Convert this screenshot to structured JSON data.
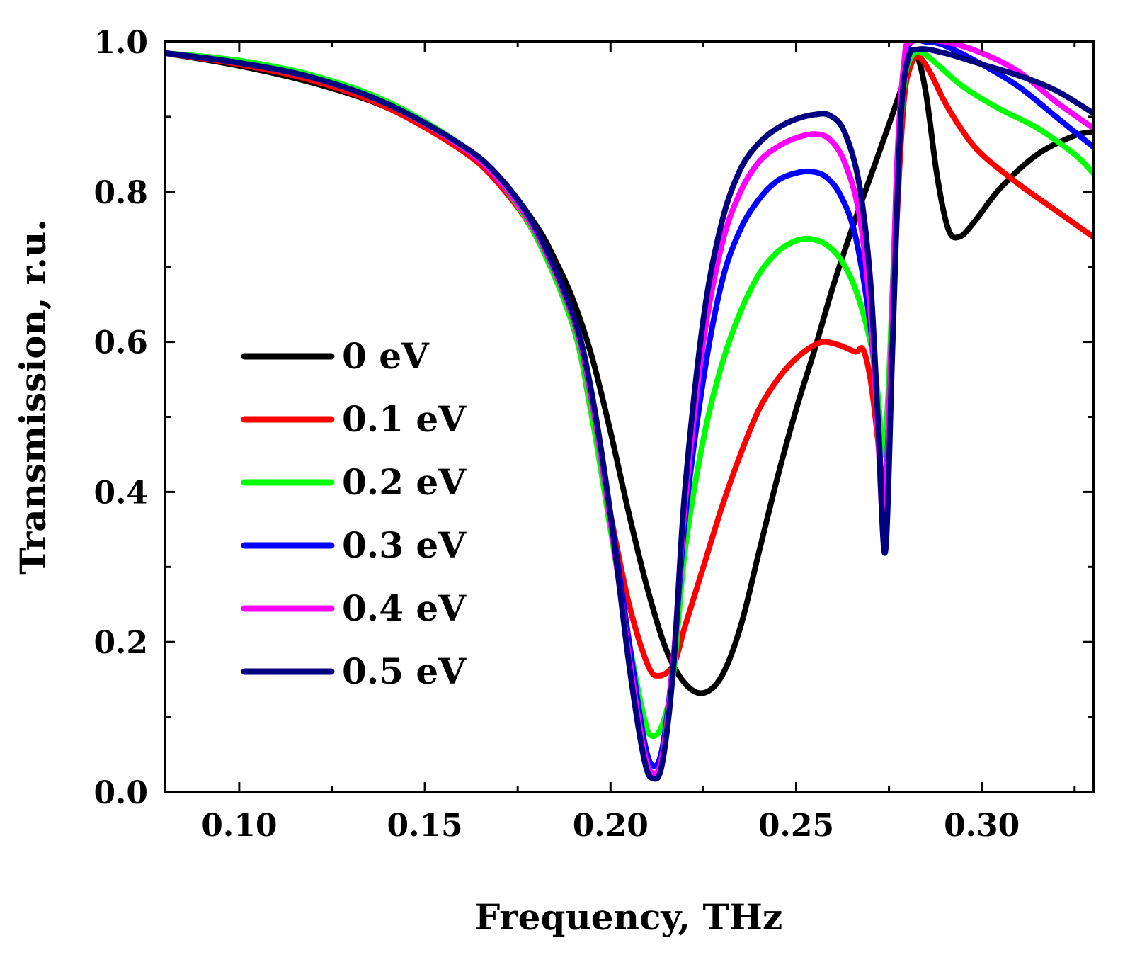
{
  "chart_data": {
    "type": "line",
    "title": "",
    "xlabel": "Frequency, THz",
    "ylabel": "Transmission, r.u.",
    "xlim": [
      0.08,
      0.33
    ],
    "ylim": [
      0.0,
      1.0
    ],
    "x_major_ticks": [
      0.1,
      0.15,
      0.2,
      0.25,
      0.3
    ],
    "x_tick_labels": [
      "0.10",
      "0.15",
      "0.20",
      "0.25",
      "0.30"
    ],
    "x_minor_ticks": [
      0.125,
      0.175,
      0.225,
      0.275,
      0.325
    ],
    "y_major_ticks": [
      0.0,
      0.2,
      0.4,
      0.6,
      0.8,
      1.0
    ],
    "y_tick_labels": [
      "0.0",
      "0.2",
      "0.4",
      "0.6",
      "0.8",
      "1.0"
    ],
    "y_minor_ticks": [
      0.1,
      0.3,
      0.5,
      0.7,
      0.9
    ],
    "grid": false,
    "legend_position": "center-left",
    "series": [
      {
        "name": "0 eV",
        "color": "#000000",
        "points": [
          [
            0.08,
            0.985
          ],
          [
            0.1,
            0.968
          ],
          [
            0.12,
            0.945
          ],
          [
            0.14,
            0.912
          ],
          [
            0.16,
            0.86
          ],
          [
            0.17,
            0.82
          ],
          [
            0.18,
            0.755
          ],
          [
            0.185,
            0.71
          ],
          [
            0.19,
            0.655
          ],
          [
            0.195,
            0.58
          ],
          [
            0.2,
            0.48
          ],
          [
            0.205,
            0.37
          ],
          [
            0.21,
            0.27
          ],
          [
            0.215,
            0.19
          ],
          [
            0.22,
            0.145
          ],
          [
            0.225,
            0.132
          ],
          [
            0.23,
            0.155
          ],
          [
            0.235,
            0.22
          ],
          [
            0.24,
            0.32
          ],
          [
            0.245,
            0.42
          ],
          [
            0.25,
            0.51
          ],
          [
            0.255,
            0.59
          ],
          [
            0.26,
            0.675
          ],
          [
            0.265,
            0.75
          ],
          [
            0.27,
            0.82
          ],
          [
            0.275,
            0.89
          ],
          [
            0.28,
            0.96
          ],
          [
            0.2825,
            0.98
          ],
          [
            0.285,
            0.93
          ],
          [
            0.288,
            0.82
          ],
          [
            0.291,
            0.75
          ],
          [
            0.294,
            0.74
          ],
          [
            0.298,
            0.76
          ],
          [
            0.305,
            0.805
          ],
          [
            0.315,
            0.85
          ],
          [
            0.325,
            0.875
          ],
          [
            0.33,
            0.88
          ]
        ]
      },
      {
        "name": "0.1 eV",
        "color": "#ff0000",
        "points": [
          [
            0.08,
            0.985
          ],
          [
            0.1,
            0.97
          ],
          [
            0.12,
            0.948
          ],
          [
            0.14,
            0.912
          ],
          [
            0.16,
            0.855
          ],
          [
            0.17,
            0.81
          ],
          [
            0.18,
            0.74
          ],
          [
            0.19,
            0.62
          ],
          [
            0.195,
            0.5
          ],
          [
            0.2,
            0.37
          ],
          [
            0.205,
            0.25
          ],
          [
            0.21,
            0.17
          ],
          [
            0.213,
            0.155
          ],
          [
            0.217,
            0.17
          ],
          [
            0.22,
            0.22
          ],
          [
            0.225,
            0.3
          ],
          [
            0.23,
            0.38
          ],
          [
            0.235,
            0.45
          ],
          [
            0.24,
            0.51
          ],
          [
            0.245,
            0.55
          ],
          [
            0.25,
            0.578
          ],
          [
            0.255,
            0.596
          ],
          [
            0.258,
            0.6
          ],
          [
            0.262,
            0.595
          ],
          [
            0.266,
            0.587
          ],
          [
            0.268,
            0.59
          ],
          [
            0.27,
            0.55
          ],
          [
            0.272,
            0.47
          ],
          [
            0.2735,
            0.4
          ],
          [
            0.275,
            0.5
          ],
          [
            0.277,
            0.75
          ],
          [
            0.279,
            0.92
          ],
          [
            0.281,
            0.97
          ],
          [
            0.283,
            0.98
          ],
          [
            0.286,
            0.96
          ],
          [
            0.29,
            0.92
          ],
          [
            0.295,
            0.88
          ],
          [
            0.3,
            0.85
          ],
          [
            0.31,
            0.81
          ],
          [
            0.32,
            0.775
          ],
          [
            0.33,
            0.74
          ]
        ]
      },
      {
        "name": "0.2 eV",
        "color": "#00ff00",
        "points": [
          [
            0.08,
            0.985
          ],
          [
            0.1,
            0.975
          ],
          [
            0.12,
            0.955
          ],
          [
            0.14,
            0.92
          ],
          [
            0.16,
            0.862
          ],
          [
            0.17,
            0.815
          ],
          [
            0.18,
            0.74
          ],
          [
            0.19,
            0.62
          ],
          [
            0.195,
            0.5
          ],
          [
            0.2,
            0.35
          ],
          [
            0.205,
            0.2
          ],
          [
            0.209,
            0.1
          ],
          [
            0.211,
            0.075
          ],
          [
            0.214,
            0.09
          ],
          [
            0.217,
            0.16
          ],
          [
            0.22,
            0.32
          ],
          [
            0.225,
            0.47
          ],
          [
            0.23,
            0.57
          ],
          [
            0.235,
            0.64
          ],
          [
            0.24,
            0.69
          ],
          [
            0.245,
            0.72
          ],
          [
            0.25,
            0.735
          ],
          [
            0.254,
            0.737
          ],
          [
            0.258,
            0.73
          ],
          [
            0.262,
            0.71
          ],
          [
            0.266,
            0.67
          ],
          [
            0.27,
            0.6
          ],
          [
            0.272,
            0.53
          ],
          [
            0.2735,
            0.45
          ],
          [
            0.275,
            0.55
          ],
          [
            0.277,
            0.8
          ],
          [
            0.279,
            0.94
          ],
          [
            0.281,
            0.98
          ],
          [
            0.284,
            0.985
          ],
          [
            0.288,
            0.97
          ],
          [
            0.295,
            0.94
          ],
          [
            0.305,
            0.91
          ],
          [
            0.315,
            0.885
          ],
          [
            0.325,
            0.85
          ],
          [
            0.33,
            0.825
          ]
        ]
      },
      {
        "name": "0.3 eV",
        "color": "#0000ff",
        "points": [
          [
            0.08,
            0.985
          ],
          [
            0.1,
            0.972
          ],
          [
            0.12,
            0.952
          ],
          [
            0.14,
            0.917
          ],
          [
            0.16,
            0.86
          ],
          [
            0.17,
            0.815
          ],
          [
            0.18,
            0.745
          ],
          [
            0.19,
            0.63
          ],
          [
            0.195,
            0.52
          ],
          [
            0.2,
            0.37
          ],
          [
            0.205,
            0.2
          ],
          [
            0.209,
            0.07
          ],
          [
            0.2115,
            0.035
          ],
          [
            0.214,
            0.06
          ],
          [
            0.217,
            0.18
          ],
          [
            0.22,
            0.36
          ],
          [
            0.225,
            0.55
          ],
          [
            0.23,
            0.68
          ],
          [
            0.235,
            0.75
          ],
          [
            0.24,
            0.79
          ],
          [
            0.245,
            0.815
          ],
          [
            0.25,
            0.825
          ],
          [
            0.254,
            0.827
          ],
          [
            0.258,
            0.82
          ],
          [
            0.262,
            0.795
          ],
          [
            0.266,
            0.74
          ],
          [
            0.27,
            0.62
          ],
          [
            0.272,
            0.5
          ],
          [
            0.2735,
            0.38
          ],
          [
            0.275,
            0.5
          ],
          [
            0.277,
            0.8
          ],
          [
            0.279,
            0.96
          ],
          [
            0.281,
            1.0
          ],
          [
            0.285,
            1.0
          ],
          [
            0.29,
            0.995
          ],
          [
            0.3,
            0.97
          ],
          [
            0.31,
            0.94
          ],
          [
            0.32,
            0.9
          ],
          [
            0.33,
            0.86
          ]
        ]
      },
      {
        "name": "0.4 eV",
        "color": "#ff00ff",
        "points": [
          [
            0.08,
            0.985
          ],
          [
            0.1,
            0.972
          ],
          [
            0.12,
            0.952
          ],
          [
            0.14,
            0.917
          ],
          [
            0.16,
            0.86
          ],
          [
            0.17,
            0.815
          ],
          [
            0.18,
            0.745
          ],
          [
            0.19,
            0.63
          ],
          [
            0.195,
            0.52
          ],
          [
            0.2,
            0.36
          ],
          [
            0.205,
            0.18
          ],
          [
            0.209,
            0.055
          ],
          [
            0.2115,
            0.025
          ],
          [
            0.214,
            0.05
          ],
          [
            0.217,
            0.18
          ],
          [
            0.22,
            0.38
          ],
          [
            0.225,
            0.6
          ],
          [
            0.23,
            0.73
          ],
          [
            0.235,
            0.8
          ],
          [
            0.24,
            0.84
          ],
          [
            0.245,
            0.86
          ],
          [
            0.25,
            0.872
          ],
          [
            0.255,
            0.877
          ],
          [
            0.259,
            0.87
          ],
          [
            0.263,
            0.84
          ],
          [
            0.267,
            0.77
          ],
          [
            0.27,
            0.64
          ],
          [
            0.272,
            0.48
          ],
          [
            0.2735,
            0.36
          ],
          [
            0.275,
            0.5
          ],
          [
            0.277,
            0.82
          ],
          [
            0.279,
            0.97
          ],
          [
            0.281,
            1.0
          ],
          [
            0.29,
            1.0
          ],
          [
            0.3,
            0.985
          ],
          [
            0.31,
            0.96
          ],
          [
            0.32,
            0.92
          ],
          [
            0.33,
            0.885
          ]
        ]
      },
      {
        "name": "0.5 eV",
        "color": "#000080",
        "points": [
          [
            0.08,
            0.985
          ],
          [
            0.1,
            0.972
          ],
          [
            0.12,
            0.952
          ],
          [
            0.14,
            0.917
          ],
          [
            0.16,
            0.862
          ],
          [
            0.17,
            0.82
          ],
          [
            0.18,
            0.75
          ],
          [
            0.19,
            0.635
          ],
          [
            0.195,
            0.53
          ],
          [
            0.2,
            0.37
          ],
          [
            0.205,
            0.17
          ],
          [
            0.209,
            0.045
          ],
          [
            0.2115,
            0.018
          ],
          [
            0.214,
            0.04
          ],
          [
            0.217,
            0.17
          ],
          [
            0.22,
            0.4
          ],
          [
            0.225,
            0.63
          ],
          [
            0.23,
            0.76
          ],
          [
            0.235,
            0.83
          ],
          [
            0.24,
            0.865
          ],
          [
            0.245,
            0.885
          ],
          [
            0.25,
            0.897
          ],
          [
            0.255,
            0.903
          ],
          [
            0.259,
            0.902
          ],
          [
            0.263,
            0.88
          ],
          [
            0.267,
            0.81
          ],
          [
            0.27,
            0.68
          ],
          [
            0.272,
            0.5
          ],
          [
            0.274,
            0.32
          ],
          [
            0.276,
            0.6
          ],
          [
            0.278,
            0.88
          ],
          [
            0.28,
            0.975
          ],
          [
            0.283,
            0.99
          ],
          [
            0.29,
            0.985
          ],
          [
            0.3,
            0.97
          ],
          [
            0.31,
            0.955
          ],
          [
            0.32,
            0.935
          ],
          [
            0.33,
            0.905
          ]
        ]
      }
    ]
  }
}
